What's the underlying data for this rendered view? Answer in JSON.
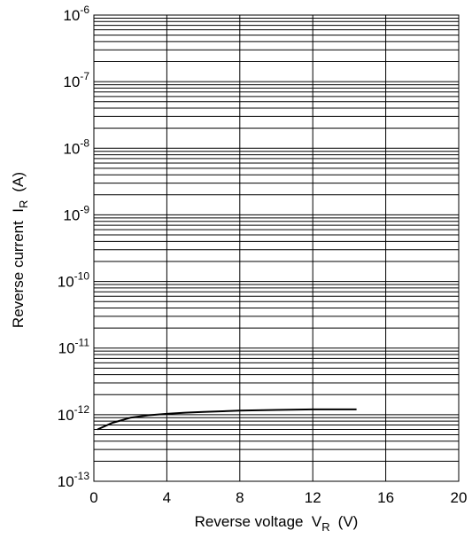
{
  "chart_data": {
    "type": "line",
    "xlabel": "Reverse voltage  V",
    "xlabel_sub": "R",
    "xlabel_unit": "(V)",
    "ylabel": "Reverse current  I",
    "ylabel_sub": "R",
    "ylabel_unit": "(A)",
    "xlim": [
      0,
      20
    ],
    "ylim": [
      1e-13,
      1e-06
    ],
    "yscale": "log",
    "grid": true,
    "x_ticks": [
      0,
      4,
      8,
      12,
      16,
      20
    ],
    "x_tick_labels": [
      "0",
      "4",
      "8",
      "12",
      "16",
      "20"
    ],
    "y_ticks": [
      1e-13,
      1e-12,
      1e-11,
      1e-10,
      1e-09,
      1e-08,
      1e-07,
      1e-06
    ],
    "y_tick_labels": [
      {
        "base": "10",
        "exp": "-13"
      },
      {
        "base": "10",
        "exp": "-12"
      },
      {
        "base": "10",
        "exp": "-11"
      },
      {
        "base": "10",
        "exp": "-10"
      },
      {
        "base": "10",
        "exp": "-9"
      },
      {
        "base": "10",
        "exp": "-8"
      },
      {
        "base": "10",
        "exp": "-7"
      },
      {
        "base": "10",
        "exp": "-6"
      }
    ],
    "series": [
      {
        "color": "#000000",
        "x": [
          0.2,
          1,
          2,
          3,
          4,
          5,
          6,
          8,
          10,
          12,
          14,
          14.4
        ],
        "y": [
          6e-13,
          7.5e-13,
          9e-13,
          9.8e-13,
          1.03e-12,
          1.07e-12,
          1.1e-12,
          1.15e-12,
          1.18e-12,
          1.2e-12,
          1.2e-12,
          1.2e-12
        ]
      }
    ]
  }
}
